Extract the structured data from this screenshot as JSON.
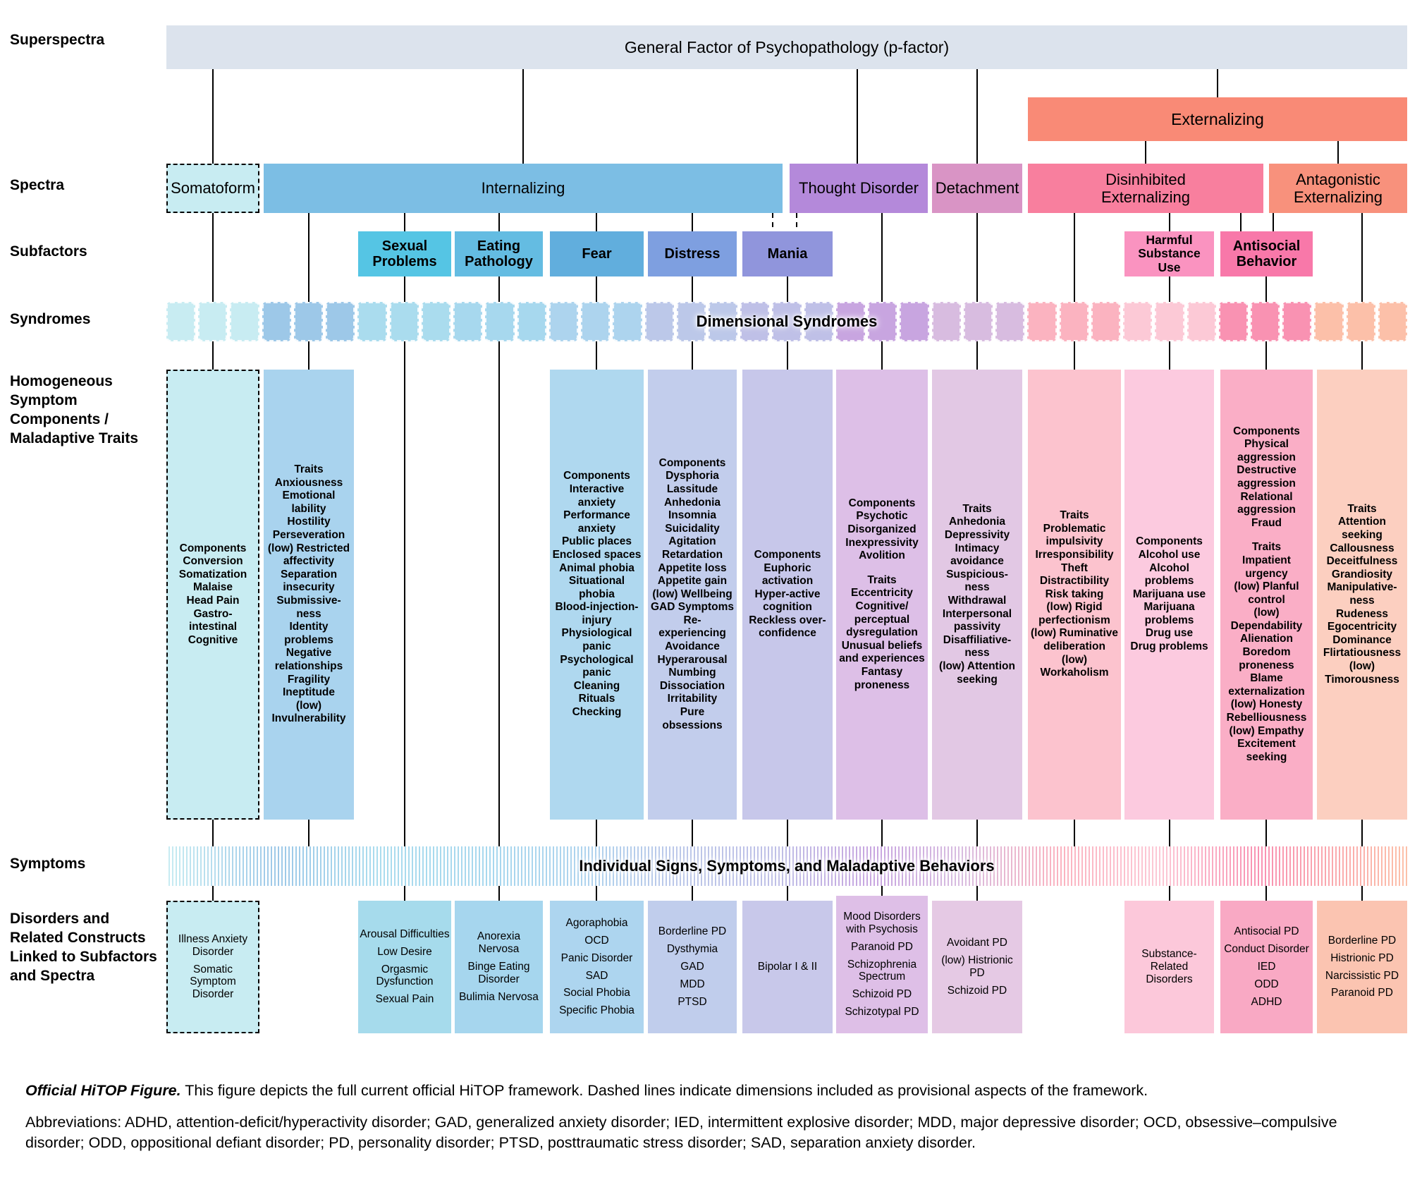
{
  "row_labels": {
    "superspectra": "Superspectra",
    "spectra": "Spectra",
    "subfactors": "Subfactors",
    "syndromes": "Syndromes",
    "components": "Homogeneous\nSymptom\nComponents /\nMaladaptive Traits",
    "symptoms": "Symptoms",
    "disorders": "Disorders and\nRelated Constructs\nLinked to Subfactors\nand Spectra"
  },
  "superspectra": {
    "label": "General Factor of Psychopathology (p-factor)"
  },
  "externalizing": {
    "label": "Externalizing"
  },
  "spectra": {
    "somatoform": "Somatoform",
    "internalizing": "Internalizing",
    "thought_disorder": "Thought Disorder",
    "detachment": "Detachment",
    "disinhibited": "Disinhibited\nExternalizing",
    "antagonistic": "Antagonistic\nExternalizing"
  },
  "subfactors": {
    "sexual_problems": "Sexual\nProblems",
    "eating_pathology": "Eating\nPathology",
    "fear": "Fear",
    "distress": "Distress",
    "mania": "Mania",
    "harmful_substance_use": "Harmful\nSubstance\nUse",
    "antisocial_behavior": "Antisocial\nBehavior"
  },
  "syndromes_band": {
    "label": "Dimensional Syndromes",
    "cells": [
      "#c8ecf2",
      "#c8ecf2",
      "#c8ecf2",
      "#9dc8e8",
      "#9dc8e8",
      "#9dc8e8",
      "#aadcee",
      "#aadcee",
      "#aadcee",
      "#a7d8ee",
      "#a7d8ee",
      "#a7d8ee",
      "#add4ee",
      "#add4ee",
      "#add4ee",
      "#bcc8e9",
      "#bcc8e9",
      "#bcc8e9",
      "#bfc0e7",
      "#bfc0e7",
      "#bfc0e7",
      "#c8a5e0",
      "#c8a5e0",
      "#c8a5e0",
      "#d8bce0",
      "#d8bce0",
      "#d8bce0",
      "#fbb3c0",
      "#fbb3c0",
      "#fbb3c0",
      "#fcc9d6",
      "#fcc9d6",
      "#fcc9d6",
      "#f992b2",
      "#f992b2",
      "#f992b2",
      "#fcc0a9",
      "#fcc0a9",
      "#fcc0a9"
    ]
  },
  "symptoms_band": {
    "label": "Individual Signs, Symptoms, and Maladaptive Behaviors"
  },
  "columns": {
    "somatoform": {
      "sections": [
        {
          "title": "Components",
          "items": [
            "Conversion",
            "Somatization",
            "Malaise",
            "Head Pain",
            "Gastro-intestinal",
            "Cognitive"
          ]
        }
      ]
    },
    "internalizing": {
      "sections": [
        {
          "title": "Traits",
          "items": [
            "Anxiousness",
            "Emotional lability",
            "Hostility",
            "Perseveration",
            "(low) Restricted affectivity",
            "Separation insecurity",
            "Submissive-ness",
            "Identity problems",
            "Negative relationships",
            "Fragility",
            "Ineptitude",
            "(low) Invulnerability"
          ]
        }
      ]
    },
    "fear": {
      "sections": [
        {
          "title": "Components",
          "items": [
            "Interactive anxiety",
            "Performance anxiety",
            "Public places",
            "Enclosed spaces",
            "Animal phobia",
            "Situational phobia",
            "Blood-injection-injury",
            "Physiological panic",
            "Psychological panic",
            "Cleaning",
            "Rituals",
            "Checking"
          ]
        }
      ]
    },
    "distress": {
      "sections": [
        {
          "title": "Components",
          "items": [
            "Dysphoria",
            "Lassitude",
            "Anhedonia",
            "Insomnia",
            "Suicidality",
            "Agitation",
            "Retardation",
            "Appetite loss",
            "Appetite gain",
            "(low) Wellbeing",
            "GAD Symptoms",
            "Re-experiencing",
            "Avoidance",
            "Hyperarousal",
            "Numbing",
            "Dissociation",
            "Irritability",
            "Pure obsessions"
          ]
        }
      ]
    },
    "mania": {
      "sections": [
        {
          "title": "Components",
          "items": [
            "Euphoric activation",
            "Hyper-active cognition",
            "Reckless over-confidence"
          ]
        }
      ]
    },
    "thought_disorder": {
      "sections": [
        {
          "title": "Components",
          "items": [
            "Psychotic",
            "Disorganized",
            "Inexpressivity",
            "Avolition"
          ]
        },
        {
          "title": "Traits",
          "items": [
            "Eccentricity",
            "Cognitive/ perceptual dysregulation",
            "Unusual beliefs and experiences",
            "Fantasy proneness"
          ]
        }
      ]
    },
    "detachment": {
      "sections": [
        {
          "title": "Traits",
          "items": [
            "Anhedonia",
            "Depressivity",
            "Intimacy avoidance",
            "Suspicious-ness",
            "Withdrawal",
            "Interpersonal passivity",
            "Disaffiliative-ness",
            "(low) Attention seeking"
          ]
        }
      ]
    },
    "disinhibited": {
      "sections": [
        {
          "title": "Traits",
          "items": [
            "Problematic impulsivity",
            "Irresponsibility",
            "Theft",
            "Distractibility",
            "Risk taking",
            "(low) Rigid perfectionism",
            "(low) Ruminative deliberation",
            "(low) Workaholism"
          ]
        }
      ]
    },
    "substance": {
      "sections": [
        {
          "title": "Components",
          "items": [
            "Alcohol use",
            "Alcohol problems",
            "Marijuana use",
            "Marijuana problems",
            "Drug use",
            "Drug problems"
          ]
        }
      ]
    },
    "antisocial": {
      "sections": [
        {
          "title": "Components",
          "items": [
            "Physical aggression",
            "Destructive aggression",
            "Relational aggression",
            "Fraud"
          ]
        },
        {
          "title": "Traits",
          "items": [
            "Impatient urgency",
            "(low) Planful control",
            "(low) Dependability",
            "Alienation",
            "Boredom proneness",
            "Blame externalization",
            "(low) Honesty",
            "Rebelliousness",
            "(low) Empathy",
            "Excitement seeking"
          ]
        }
      ]
    },
    "antagonistic": {
      "sections": [
        {
          "title": "Traits",
          "items": [
            "Attention seeking",
            "Callousness",
            "Deceitfulness",
            "Grandiosity",
            "Manipulative-ness",
            "Rudeness",
            "Egocentricity",
            "Dominance",
            "Flirtatiousness",
            "(low) Timorousness"
          ]
        }
      ]
    }
  },
  "disorders": {
    "somatoform": {
      "sections": [
        {
          "items": [
            "Illness Anxiety Disorder",
            "Somatic Symptom Disorder"
          ]
        }
      ]
    },
    "sexual": {
      "sections": [
        {
          "items": [
            "Arousal Difficulties",
            "Low Desire",
            "Orgasmic Dysfunction",
            "Sexual Pain"
          ]
        }
      ]
    },
    "eating": {
      "sections": [
        {
          "items": [
            "Anorexia Nervosa",
            "Binge Eating Disorder",
            "Bulimia Nervosa"
          ]
        }
      ]
    },
    "fear": {
      "sections": [
        {
          "items": [
            "Agoraphobia",
            "OCD",
            "Panic Disorder",
            "SAD",
            "Social Phobia",
            "Specific Phobia"
          ]
        }
      ]
    },
    "distress": {
      "sections": [
        {
          "items": [
            "Borderline PD",
            "Dysthymia",
            "GAD",
            "MDD",
            "PTSD"
          ]
        }
      ]
    },
    "mania": {
      "sections": [
        {
          "items": [
            "Bipolar I & II"
          ]
        }
      ]
    },
    "thought_disorder": {
      "sections": [
        {
          "items": [
            "Mood Disorders with Psychosis",
            "Paranoid PD",
            "Schizophrenia Spectrum",
            "Schizoid PD",
            "Schizotypal PD"
          ]
        }
      ]
    },
    "detachment": {
      "sections": [
        {
          "items": [
            "Avoidant PD",
            "(low) Histrionic PD",
            "Schizoid PD"
          ]
        }
      ]
    },
    "substance": {
      "sections": [
        {
          "items": [
            "Substance-Related Disorders"
          ]
        }
      ]
    },
    "antisocial": {
      "sections": [
        {
          "items": [
            "Antisocial PD",
            "Conduct Disorder",
            "IED",
            "ODD",
            "ADHD"
          ]
        }
      ]
    },
    "antagonistic": {
      "sections": [
        {
          "items": [
            "Borderline PD",
            "Histrionic PD",
            "Narcissistic PD",
            "Paranoid PD"
          ]
        }
      ]
    }
  },
  "caption": {
    "lead": "Official HiTOP Figure.",
    "body": " This figure depicts the full current official HiTOP framework. Dashed lines indicate dimensions included as provisional aspects of the framework.",
    "abbreviations": "Abbreviations: ADHD, attention-deficit/hyperactivity disorder; GAD, generalized anxiety disorder; IED, intermittent explosive disorder; MDD, major depressive disorder; OCD, obsessive–compulsive disorder; ODD, oppositional defiant disorder; PD, personality disorder; PTSD, posttraumatic stress disorder; SAD, separation anxiety disorder."
  },
  "colors": {
    "superspectra_bar": "#dce3ed",
    "externalizing_bar": "#f98a76",
    "somatoform": "#c8ecf2",
    "internalizing": "#7cbee4",
    "thought_disorder": "#b489da",
    "detachment": "#d994c5",
    "disinhibited": "#f87f9e",
    "antagonistic": "#f8917c",
    "sexual_problems": "#55c5e4",
    "eating_pathology": "#64bce2",
    "fear": "#61aedd",
    "distress": "#7e9fe0",
    "mania": "#9095dc",
    "harmful_substance_use": "#fa93c0",
    "antisocial_behavior": "#f878a9",
    "col_somatoform": "#c8ecf2",
    "col_internalizing": "#a9d3ee",
    "col_fear": "#afd8ef",
    "col_distress": "#c2cdec",
    "col_mania": "#c7c7ea",
    "col_thought": "#ddbfe7",
    "col_detachment": "#e2c8e4",
    "col_disinhibited": "#fcc3ce",
    "col_substance": "#fccadf",
    "col_antisocial": "#faaec6",
    "col_antagonistic": "#fccfc0",
    "dis_somatoform": "#c8ecf2",
    "dis_sexual": "#a6dbec",
    "dis_eating": "#a6d6ee",
    "dis_fear": "#add5ef",
    "dis_distress": "#c0cdec",
    "dis_mania": "#c8c8ea",
    "dis_thought": "#debfe7",
    "dis_detachment": "#e5c9e4",
    "dis_substance": "#fcc8da",
    "dis_antisocial": "#f9a9c4",
    "dis_antagonistic": "#fbc4b1"
  }
}
